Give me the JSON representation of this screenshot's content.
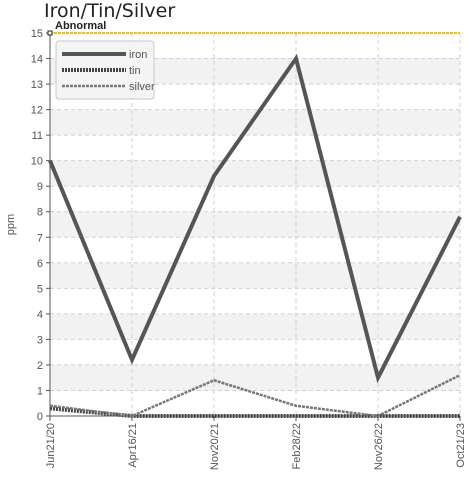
{
  "chart_data": {
    "type": "line",
    "title": "Iron/Tin/Silver",
    "ylabel": "ppm",
    "xlabel": "",
    "categories": [
      "Jun21/20",
      "Apr16/21",
      "Nov20/21",
      "Feb28/22",
      "Nov26/22",
      "Oct21/23"
    ],
    "ylim": [
      0,
      15
    ],
    "yticks": [
      0,
      1,
      2,
      3,
      4,
      5,
      6,
      7,
      8,
      9,
      10,
      11,
      12,
      13,
      14,
      15
    ],
    "grid": true,
    "legend_position": "top-left",
    "threshold": {
      "label": "Abnormal",
      "value": 15,
      "color": "#f5c400"
    },
    "series": [
      {
        "name": "iron",
        "values": [
          10,
          2.2,
          9.4,
          14,
          1.5,
          7.8
        ],
        "color": "#555555",
        "style": "solid"
      },
      {
        "name": "tin",
        "values": [
          0.3,
          0,
          0,
          0,
          0,
          0
        ],
        "color": "#444444",
        "style": "dotted"
      },
      {
        "name": "silver",
        "values": [
          0.4,
          0,
          1.4,
          0.4,
          0,
          1.6
        ],
        "color": "#777777",
        "style": "dashed"
      }
    ]
  }
}
